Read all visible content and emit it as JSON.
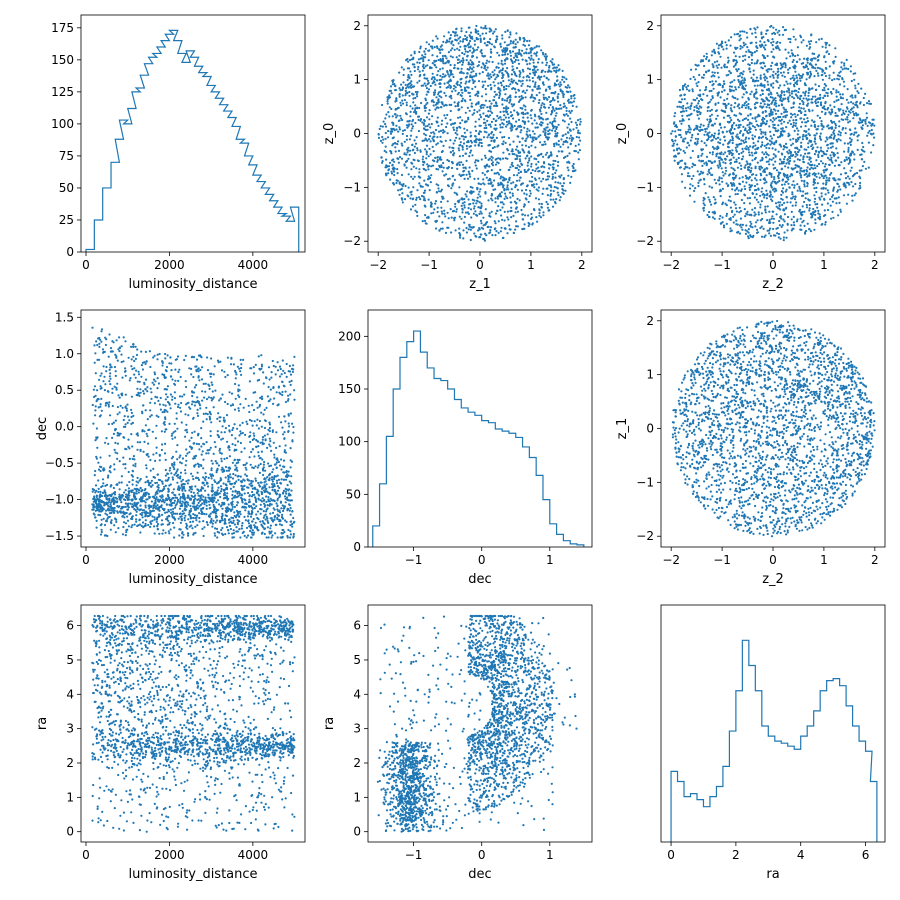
{
  "figure": {
    "series_color": "#1f77b4"
  },
  "chart_data": [
    {
      "id": "p00",
      "type": "histogram",
      "row": 0,
      "col": 0,
      "xlabel": "luminosity_distance",
      "ylabel": "",
      "xlim": [
        -120,
        5250
      ],
      "ylim": [
        0,
        185
      ],
      "xticks": [
        0,
        2000,
        4000
      ],
      "yticks": [
        0,
        25,
        50,
        75,
        100,
        125,
        150,
        175
      ],
      "x": [
        100,
        300,
        500,
        700,
        800,
        900,
        1000,
        1100,
        1200,
        1300,
        1400,
        1500,
        1600,
        1700,
        1800,
        1900,
        2000,
        2100,
        2200,
        2300,
        2400,
        2500,
        2600,
        2700,
        2800,
        2900,
        3000,
        3100,
        3200,
        3300,
        3400,
        3500,
        3600,
        3700,
        3800,
        3900,
        4000,
        4100,
        4200,
        4300,
        4400,
        4500,
        4600,
        4700,
        4800,
        4900,
        5000
      ],
      "values": [
        2,
        25,
        50,
        70,
        88,
        103,
        100,
        112,
        125,
        128,
        138,
        147,
        152,
        155,
        160,
        165,
        170,
        173,
        165,
        155,
        148,
        157,
        152,
        145,
        140,
        137,
        130,
        125,
        120,
        115,
        110,
        105,
        98,
        88,
        85,
        75,
        68,
        60,
        55,
        50,
        45,
        40,
        35,
        30,
        28,
        24,
        35
      ]
    },
    {
      "id": "p01",
      "type": "scatter",
      "row": 0,
      "col": 1,
      "xlabel": "z_1",
      "ylabel": "z_0",
      "xlim": [
        -2.2,
        2.2
      ],
      "ylim": [
        -2.2,
        2.2
      ],
      "xticks": [
        -2,
        -1,
        0,
        1,
        2
      ],
      "yticks": [
        -2,
        -1,
        0,
        1,
        2
      ],
      "distribution": "uniform disk of radius 2, denser toward upper half"
    },
    {
      "id": "p02",
      "type": "scatter",
      "row": 0,
      "col": 2,
      "xlabel": "z_2",
      "ylabel": "z_0",
      "xlim": [
        -2.2,
        2.2
      ],
      "ylim": [
        -2.2,
        2.2
      ],
      "xticks": [
        -2,
        -1,
        0,
        1,
        2
      ],
      "yticks": [
        -2,
        -1,
        0,
        1,
        2
      ],
      "distribution": "uniform disk of radius 2, concentrated near center"
    },
    {
      "id": "p10",
      "type": "scatter",
      "row": 1,
      "col": 0,
      "xlabel": "luminosity_distance",
      "ylabel": "dec",
      "xlim": [
        -120,
        5250
      ],
      "ylim": [
        -1.65,
        1.6
      ],
      "xticks": [
        0,
        2000,
        4000
      ],
      "yticks": [
        -1.5,
        -1.0,
        -0.5,
        0.0,
        0.5,
        1.0,
        1.5
      ],
      "distribution": "dec between -1.5 and 1.0, upper edge falling from 1.5 at low distance; dense band near -1.0 at large distance"
    },
    {
      "id": "p11",
      "type": "histogram",
      "row": 1,
      "col": 1,
      "xlabel": "dec",
      "ylabel": "",
      "xlim": [
        -1.67,
        1.62
      ],
      "ylim": [
        0,
        225
      ],
      "xticks": [
        -1,
        0,
        1
      ],
      "yticks": [
        0,
        50,
        100,
        150,
        200
      ],
      "x": [
        -1.55,
        -1.45,
        -1.35,
        -1.25,
        -1.15,
        -1.05,
        -0.95,
        -0.85,
        -0.75,
        -0.65,
        -0.55,
        -0.45,
        -0.35,
        -0.25,
        -0.15,
        -0.05,
        0.05,
        0.15,
        0.25,
        0.35,
        0.45,
        0.55,
        0.65,
        0.75,
        0.85,
        0.95,
        1.05,
        1.15,
        1.25,
        1.35,
        1.45
      ],
      "values": [
        20,
        60,
        105,
        150,
        180,
        195,
        205,
        185,
        170,
        160,
        158,
        150,
        140,
        132,
        128,
        125,
        120,
        118,
        112,
        110,
        108,
        104,
        95,
        85,
        68,
        45,
        22,
        12,
        6,
        3,
        2
      ]
    },
    {
      "id": "p12",
      "type": "scatter",
      "row": 1,
      "col": 2,
      "xlabel": "z_2",
      "ylabel": "z_1",
      "xlim": [
        -2.2,
        2.2
      ],
      "ylim": [
        -2.2,
        2.2
      ],
      "xticks": [
        -2,
        -1,
        0,
        1,
        2
      ],
      "yticks": [
        -2,
        -1,
        0,
        1,
        2
      ],
      "distribution": "uniform disk of radius 2, denser toward upper right"
    },
    {
      "id": "p20",
      "type": "scatter",
      "row": 2,
      "col": 0,
      "xlabel": "luminosity_distance",
      "ylabel": "ra",
      "xlim": [
        -120,
        5250
      ],
      "ylim": [
        -0.3,
        6.6
      ],
      "xticks": [
        0,
        2000,
        4000
      ],
      "yticks": [
        0,
        1,
        2,
        3,
        4,
        5,
        6
      ],
      "distribution": "ra between 0 and 6.28; dense bands near 2.5 and 6.0 at large distance"
    },
    {
      "id": "p21",
      "type": "scatter",
      "row": 2,
      "col": 1,
      "xlabel": "dec",
      "ylabel": "ra",
      "xlim": [
        -1.67,
        1.62
      ],
      "ylim": [
        -0.3,
        6.6
      ],
      "xticks": [
        -1,
        0,
        1
      ],
      "yticks": [
        0,
        1,
        2,
        3,
        4,
        5,
        6
      ],
      "distribution": "arc from low-left around dec 1.0 at ra 3.5; dense column near dec -1.0"
    },
    {
      "id": "p22",
      "type": "histogram",
      "row": 2,
      "col": 2,
      "xlabel": "ra",
      "ylabel": "",
      "xlim": [
        -0.31,
        6.6
      ],
      "ylim": [
        0,
        235
      ],
      "xticks": [
        0,
        2,
        4,
        6
      ],
      "yticks": [],
      "x": [
        0.1,
        0.3,
        0.5,
        0.7,
        0.9,
        1.1,
        1.3,
        1.5,
        1.7,
        1.9,
        2.1,
        2.3,
        2.5,
        2.7,
        2.9,
        3.1,
        3.3,
        3.5,
        3.7,
        3.9,
        4.1,
        4.3,
        4.5,
        4.7,
        4.9,
        5.1,
        5.3,
        5.5,
        5.7,
        5.9,
        6.1,
        6.25
      ],
      "values": [
        70,
        60,
        45,
        48,
        42,
        35,
        45,
        55,
        75,
        110,
        150,
        200,
        175,
        150,
        115,
        105,
        100,
        98,
        95,
        92,
        105,
        115,
        130,
        150,
        160,
        162,
        155,
        135,
        115,
        100,
        90,
        60
      ]
    }
  ]
}
